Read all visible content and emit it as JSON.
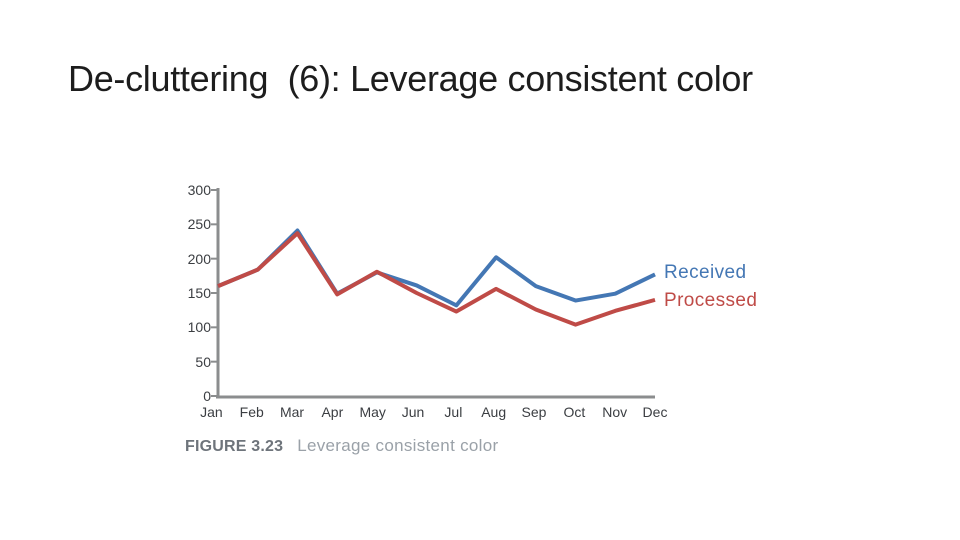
{
  "slide": {
    "title": "De-cluttering  (6): Leverage consistent color"
  },
  "figure": {
    "caption_label": "FIGURE 3.23",
    "caption_text": "Leverage consistent color"
  },
  "chart_data": {
    "type": "line",
    "title": "",
    "xlabel": "",
    "ylabel": "",
    "categories": [
      "Jan",
      "Feb",
      "Mar",
      "Apr",
      "May",
      "Jun",
      "Jul",
      "Aug",
      "Sep",
      "Oct",
      "Nov",
      "Dec"
    ],
    "series": [
      {
        "name": "Received",
        "color": "#4477b4",
        "values": [
          160,
          184,
          241,
          149,
          180,
          161,
          132,
          202,
          160,
          139,
          149,
          177
        ]
      },
      {
        "name": "Processed",
        "color": "#bf4b47",
        "values": [
          160,
          184,
          237,
          148,
          181,
          150,
          123,
          156,
          126,
          104,
          124,
          140
        ]
      }
    ],
    "ylim": [
      0,
      300
    ],
    "yticks": [
      0,
      50,
      100,
      150,
      200,
      250,
      300
    ],
    "grid": false,
    "legend_position": "right-of-line-ends",
    "axis_color": "#8b8d8e",
    "tick_label_color": "#3b3e42"
  }
}
